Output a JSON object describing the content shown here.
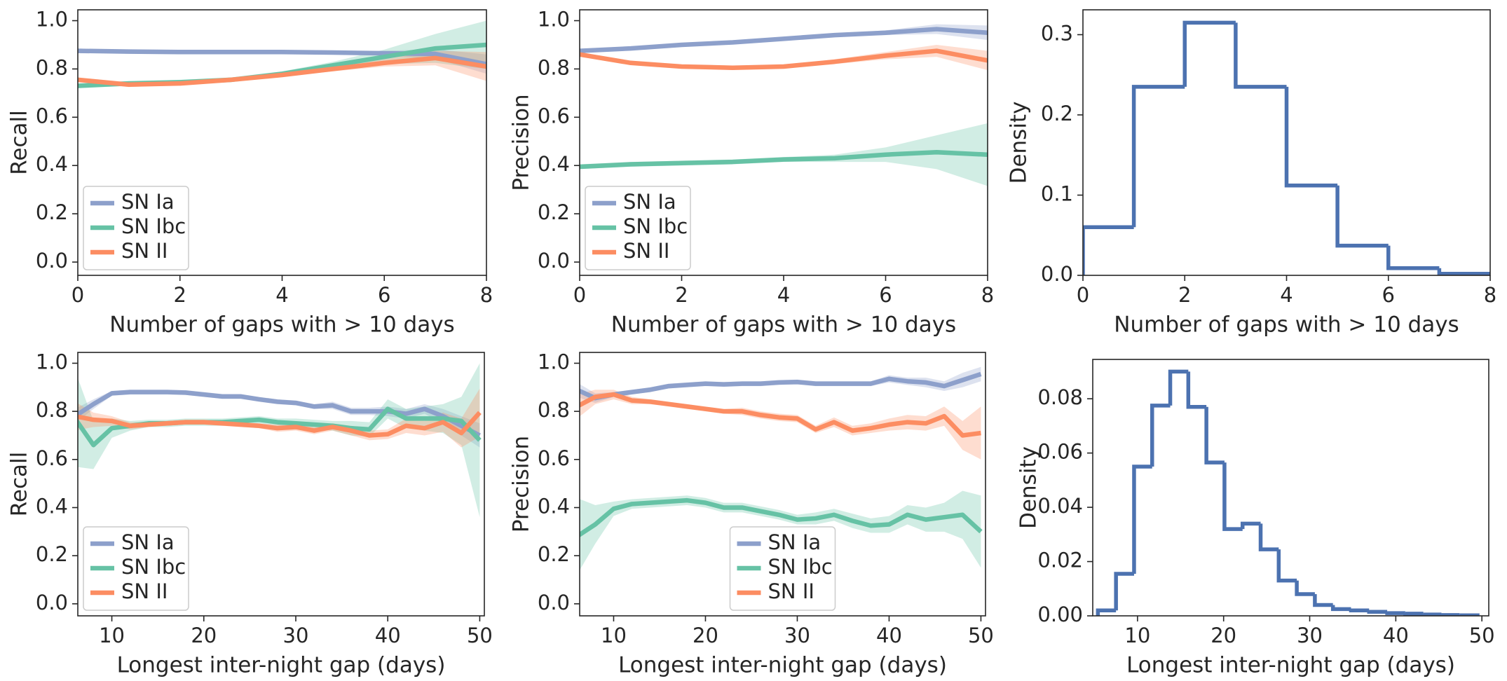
{
  "chart_data": [
    {
      "type": "line",
      "xlabel": "Number of gaps with > 10 days",
      "ylabel": "Recall",
      "x": [
        0,
        1,
        2,
        3,
        4,
        5,
        6,
        7,
        8
      ],
      "xlim": [
        0,
        8
      ],
      "xticks": [
        0,
        2,
        4,
        6,
        8
      ],
      "ylim": [
        -0.055,
        1.045
      ],
      "yticks": [
        {
          "value": 0,
          "label": "0.0"
        },
        {
          "value": 0.2,
          "label": "0.2"
        },
        {
          "value": 0.4,
          "label": "0.4"
        },
        {
          "value": 0.6,
          "label": "0.6"
        },
        {
          "value": 0.8,
          "label": "0.8"
        },
        {
          "value": 1,
          "label": "1.0"
        }
      ],
      "legend": "lower left",
      "series": [
        {
          "name": "SN Ia",
          "color": "#8da0cb",
          "values": [
            0.875,
            0.872,
            0.87,
            0.87,
            0.87,
            0.868,
            0.865,
            0.862,
            0.82
          ],
          "errors": [
            0.01,
            0.005,
            0.005,
            0.005,
            0.005,
            0.005,
            0.01,
            0.02,
            0.04
          ]
        },
        {
          "name": "SN Ibc",
          "color": "#66c2a5",
          "values": [
            0.73,
            0.74,
            0.745,
            0.755,
            0.78,
            0.815,
            0.85,
            0.885,
            0.9
          ],
          "errors": [
            0.01,
            0.01,
            0.01,
            0.01,
            0.01,
            0.015,
            0.03,
            0.06,
            0.1
          ]
        },
        {
          "name": "SN II",
          "color": "#fc8d62",
          "values": [
            0.755,
            0.735,
            0.74,
            0.755,
            0.775,
            0.8,
            0.825,
            0.845,
            0.81
          ],
          "errors": [
            0.01,
            0.01,
            0.005,
            0.005,
            0.005,
            0.01,
            0.015,
            0.03,
            0.06
          ]
        }
      ]
    },
    {
      "type": "line",
      "xlabel": "Number of gaps with > 10 days",
      "ylabel": "Precision",
      "x": [
        0,
        1,
        2,
        3,
        4,
        5,
        6,
        7,
        8
      ],
      "xlim": [
        0,
        8
      ],
      "xticks": [
        0,
        2,
        4,
        6,
        8
      ],
      "ylim": [
        -0.055,
        1.045
      ],
      "yticks": [
        {
          "value": 0,
          "label": "0.0"
        },
        {
          "value": 0.2,
          "label": "0.2"
        },
        {
          "value": 0.4,
          "label": "0.4"
        },
        {
          "value": 0.6,
          "label": "0.6"
        },
        {
          "value": 0.8,
          "label": "0.8"
        },
        {
          "value": 1,
          "label": "1.0"
        }
      ],
      "legend": "lower left",
      "series": [
        {
          "name": "SN Ia",
          "color": "#8da0cb",
          "values": [
            0.875,
            0.885,
            0.9,
            0.91,
            0.925,
            0.94,
            0.95,
            0.965,
            0.95
          ],
          "errors": [
            0.005,
            0.005,
            0.005,
            0.005,
            0.005,
            0.005,
            0.01,
            0.02,
            0.03
          ]
        },
        {
          "name": "SN Ibc",
          "color": "#66c2a5",
          "values": [
            0.395,
            0.405,
            0.41,
            0.415,
            0.425,
            0.43,
            0.445,
            0.455,
            0.445
          ],
          "errors": [
            0.01,
            0.01,
            0.01,
            0.01,
            0.01,
            0.015,
            0.03,
            0.07,
            0.13
          ]
        },
        {
          "name": "SN II",
          "color": "#fc8d62",
          "values": [
            0.86,
            0.825,
            0.81,
            0.805,
            0.81,
            0.83,
            0.855,
            0.875,
            0.835
          ],
          "errors": [
            0.005,
            0.005,
            0.005,
            0.005,
            0.005,
            0.01,
            0.015,
            0.025,
            0.04
          ]
        }
      ]
    },
    {
      "type": "histogram",
      "xlabel": "Number of gaps with > 10 days",
      "ylabel": "Density",
      "color": "#4c72b0",
      "bins": [
        0,
        1,
        2,
        3,
        4,
        5,
        6,
        7,
        8
      ],
      "values": [
        0.06,
        0.235,
        0.315,
        0.235,
        0.112,
        0.037,
        0.009,
        0.002
      ],
      "xlim": [
        0,
        8
      ],
      "xticks": [
        0,
        2,
        4,
        6,
        8
      ],
      "ylim": [
        0,
        0.331
      ],
      "yticks": [
        {
          "value": 0,
          "label": "0.0"
        },
        {
          "value": 0.1,
          "label": "0.1"
        },
        {
          "value": 0.2,
          "label": "0.2"
        },
        {
          "value": 0.3,
          "label": "0.3"
        }
      ]
    },
    {
      "type": "line",
      "xlabel": "Longest inter-night gap (days)",
      "ylabel": "Recall",
      "x": [
        6,
        8,
        10,
        12,
        14,
        16,
        18,
        20,
        22,
        24,
        26,
        28,
        30,
        32,
        34,
        36,
        38,
        40,
        42,
        44,
        46,
        48,
        50
      ],
      "xlim": [
        6.3,
        50.5
      ],
      "xticks": [
        10,
        20,
        30,
        40,
        50
      ],
      "ylim": [
        -0.05,
        1.045
      ],
      "yticks": [
        {
          "value": 0,
          "label": "0.0"
        },
        {
          "value": 0.2,
          "label": "0.2"
        },
        {
          "value": 0.4,
          "label": "0.4"
        },
        {
          "value": 0.6,
          "label": "0.6"
        },
        {
          "value": 0.8,
          "label": "0.8"
        },
        {
          "value": 1,
          "label": "1.0"
        }
      ],
      "legend": "lower left",
      "series": [
        {
          "name": "SN Ia",
          "color": "#8da0cb",
          "values": [
            0.78,
            0.83,
            0.875,
            0.88,
            0.88,
            0.88,
            0.878,
            0.87,
            0.862,
            0.862,
            0.85,
            0.84,
            0.835,
            0.82,
            0.825,
            0.8,
            0.8,
            0.8,
            0.79,
            0.81,
            0.78,
            0.74,
            0.7
          ],
          "errors": [
            0.03,
            0.02,
            0.01,
            0.01,
            0.01,
            0.01,
            0.01,
            0.01,
            0.01,
            0.01,
            0.01,
            0.01,
            0.01,
            0.01,
            0.015,
            0.015,
            0.015,
            0.02,
            0.02,
            0.02,
            0.03,
            0.04,
            0.05
          ]
        },
        {
          "name": "SN Ibc",
          "color": "#66c2a5",
          "values": [
            0.77,
            0.66,
            0.73,
            0.74,
            0.75,
            0.75,
            0.755,
            0.755,
            0.755,
            0.76,
            0.765,
            0.755,
            0.75,
            0.745,
            0.74,
            0.73,
            0.725,
            0.81,
            0.77,
            0.77,
            0.77,
            0.76,
            0.68
          ],
          "errors": [
            0.2,
            0.1,
            0.04,
            0.02,
            0.015,
            0.015,
            0.015,
            0.015,
            0.015,
            0.015,
            0.015,
            0.015,
            0.02,
            0.02,
            0.02,
            0.03,
            0.03,
            0.04,
            0.04,
            0.05,
            0.06,
            0.1,
            0.32
          ]
        },
        {
          "name": "SN II",
          "color": "#fc8d62",
          "values": [
            0.78,
            0.765,
            0.76,
            0.74,
            0.745,
            0.75,
            0.755,
            0.755,
            0.75,
            0.745,
            0.74,
            0.73,
            0.735,
            0.72,
            0.735,
            0.72,
            0.7,
            0.705,
            0.74,
            0.73,
            0.755,
            0.71,
            0.795
          ],
          "errors": [
            0.06,
            0.03,
            0.02,
            0.015,
            0.01,
            0.01,
            0.01,
            0.01,
            0.01,
            0.01,
            0.01,
            0.015,
            0.015,
            0.015,
            0.015,
            0.02,
            0.02,
            0.02,
            0.03,
            0.03,
            0.04,
            0.06,
            0.1
          ]
        }
      ]
    },
    {
      "type": "line",
      "xlabel": "Longest inter-night gap (days)",
      "ylabel": "Precision",
      "x": [
        6,
        8,
        10,
        12,
        14,
        16,
        18,
        20,
        22,
        24,
        26,
        28,
        30,
        32,
        34,
        36,
        38,
        40,
        42,
        44,
        46,
        48,
        50
      ],
      "xlim": [
        6.3,
        50.5
      ],
      "xticks": [
        10,
        20,
        30,
        40,
        50
      ],
      "ylim": [
        -0.05,
        1.045
      ],
      "yticks": [
        {
          "value": 0,
          "label": "0.0"
        },
        {
          "value": 0.2,
          "label": "0.2"
        },
        {
          "value": 0.4,
          "label": "0.4"
        },
        {
          "value": 0.6,
          "label": "0.6"
        },
        {
          "value": 0.8,
          "label": "0.8"
        },
        {
          "value": 1,
          "label": "1.0"
        }
      ],
      "legend": "lower center",
      "series": [
        {
          "name": "SN Ia",
          "color": "#8da0cb",
          "values": [
            0.89,
            0.855,
            0.87,
            0.88,
            0.89,
            0.905,
            0.91,
            0.915,
            0.912,
            0.915,
            0.915,
            0.92,
            0.922,
            0.915,
            0.915,
            0.915,
            0.915,
            0.935,
            0.925,
            0.92,
            0.905,
            0.93,
            0.955
          ],
          "errors": [
            0.03,
            0.02,
            0.01,
            0.01,
            0.01,
            0.01,
            0.01,
            0.01,
            0.01,
            0.01,
            0.01,
            0.01,
            0.01,
            0.01,
            0.01,
            0.01,
            0.01,
            0.015,
            0.015,
            0.02,
            0.02,
            0.03,
            0.03
          ]
        },
        {
          "name": "SN Ibc",
          "color": "#66c2a5",
          "values": [
            0.28,
            0.33,
            0.395,
            0.415,
            0.42,
            0.425,
            0.43,
            0.42,
            0.4,
            0.4,
            0.385,
            0.37,
            0.35,
            0.355,
            0.37,
            0.345,
            0.325,
            0.33,
            0.37,
            0.35,
            0.36,
            0.37,
            0.3
          ],
          "errors": [
            0.16,
            0.08,
            0.03,
            0.02,
            0.02,
            0.02,
            0.02,
            0.02,
            0.02,
            0.02,
            0.02,
            0.02,
            0.02,
            0.025,
            0.025,
            0.03,
            0.03,
            0.035,
            0.04,
            0.05,
            0.06,
            0.1,
            0.15
          ]
        },
        {
          "name": "SN II",
          "color": "#fc8d62",
          "values": [
            0.82,
            0.86,
            0.87,
            0.845,
            0.84,
            0.83,
            0.82,
            0.81,
            0.8,
            0.8,
            0.785,
            0.775,
            0.77,
            0.725,
            0.755,
            0.72,
            0.73,
            0.745,
            0.755,
            0.75,
            0.78,
            0.7,
            0.71
          ],
          "errors": [
            0.05,
            0.03,
            0.02,
            0.015,
            0.01,
            0.01,
            0.01,
            0.01,
            0.01,
            0.015,
            0.015,
            0.015,
            0.015,
            0.015,
            0.02,
            0.02,
            0.02,
            0.025,
            0.03,
            0.03,
            0.04,
            0.06,
            0.11
          ]
        }
      ]
    },
    {
      "type": "histogram",
      "xlabel": "Longest inter-night gap (days)",
      "ylabel": "Density",
      "color": "#4c72b0",
      "bins": [
        5.4,
        7.5,
        9.6,
        11.7,
        13.8,
        15.9,
        18,
        20.1,
        22.2,
        24.3,
        26.4,
        28.5,
        30.6,
        32.7,
        34.8,
        36.9,
        39,
        41.1,
        43.2,
        45.3,
        47.4,
        49.5
      ],
      "values": [
        0.002,
        0.0155,
        0.055,
        0.0775,
        0.09,
        0.077,
        0.0565,
        0.032,
        0.034,
        0.0245,
        0.013,
        0.008,
        0.004,
        0.0025,
        0.002,
        0.0015,
        0.001,
        0.0008,
        0.0005,
        0.0003,
        0.0002
      ],
      "xlim": [
        4.8,
        50.8
      ],
      "xticks": [
        10,
        20,
        30,
        40,
        50
      ],
      "ylim": [
        0,
        0.0945
      ],
      "yticks": [
        {
          "value": 0,
          "label": "0.00"
        },
        {
          "value": 0.02,
          "label": "0.02"
        },
        {
          "value": 0.04,
          "label": "0.04"
        },
        {
          "value": 0.06,
          "label": "0.06"
        },
        {
          "value": 0.08,
          "label": "0.08"
        }
      ]
    }
  ]
}
